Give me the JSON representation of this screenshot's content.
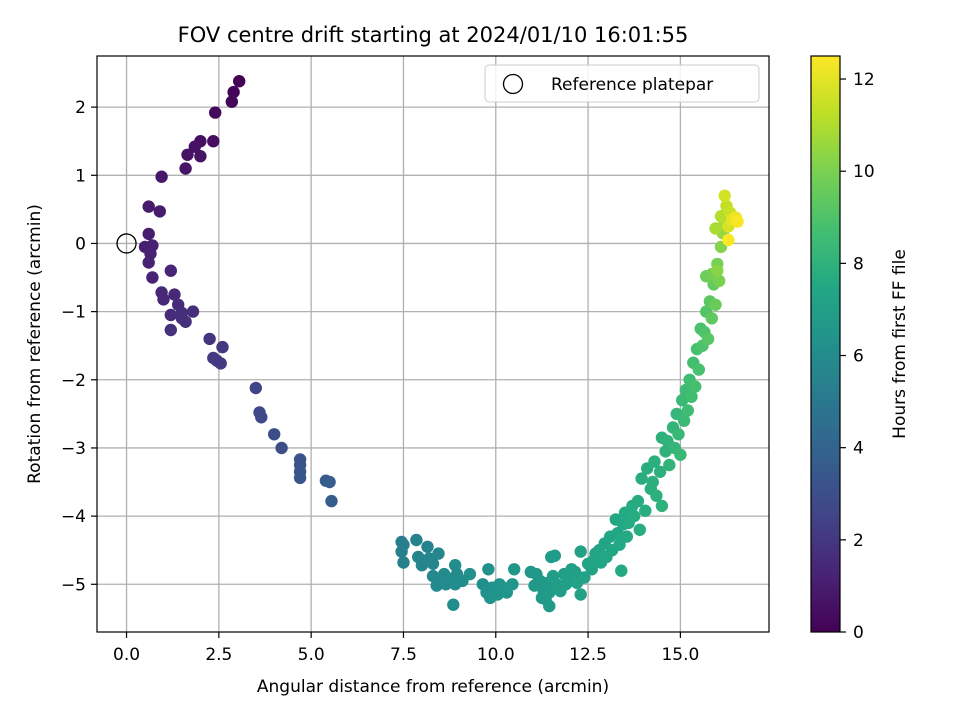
{
  "chart_data": {
    "type": "scatter",
    "title": "FOV centre drift starting at 2024/01/10 16:01:55",
    "xlabel": "Angular distance from reference (arcmin)",
    "ylabel": "Rotation from reference (arcmin)",
    "xlim": [
      -0.8,
      17.4
    ],
    "ylim": [
      -5.7,
      2.75
    ],
    "xticks": [
      0.0,
      2.5,
      5.0,
      7.5,
      10.0,
      12.5,
      15.0
    ],
    "xtick_labels": [
      "0.0",
      "2.5",
      "5.0",
      "7.5",
      "10.0",
      "12.5",
      "15.0"
    ],
    "yticks": [
      2,
      1,
      0,
      -1,
      -2,
      -3,
      -4,
      -5
    ],
    "ytick_labels": [
      "2",
      "1",
      "0",
      "−1",
      "−2",
      "−3",
      "−4",
      "−5"
    ],
    "grid": true,
    "legend": {
      "location": "top-right",
      "entries": [
        "Reference platepar"
      ]
    },
    "reference_point": {
      "x": 0.0,
      "y": 0.0,
      "marker": "open-circle",
      "name": "Reference platepar"
    },
    "colorbar": {
      "label": "Hours from first FF file",
      "colormap": "viridis",
      "range": [
        0,
        12.5
      ],
      "ticks": [
        0,
        2,
        4,
        6,
        8,
        10,
        12
      ],
      "tick_labels": [
        "0",
        "2",
        "4",
        "6",
        "8",
        "10",
        "12"
      ]
    },
    "series": [
      {
        "color_by": "hours",
        "points": [
          [
            3.05,
            2.38,
            0.05
          ],
          [
            2.9,
            2.22,
            0.15
          ],
          [
            2.85,
            2.08,
            0.2
          ],
          [
            2.4,
            1.92,
            0.3
          ],
          [
            2.35,
            1.5,
            0.4
          ],
          [
            2.0,
            1.5,
            0.5
          ],
          [
            1.85,
            1.42,
            0.55
          ],
          [
            1.65,
            1.3,
            0.6
          ],
          [
            2.0,
            1.28,
            0.65
          ],
          [
            1.6,
            1.1,
            0.7
          ],
          [
            0.95,
            0.98,
            0.8
          ],
          [
            0.6,
            0.54,
            0.9
          ],
          [
            0.9,
            0.47,
            0.95
          ],
          [
            0.6,
            0.14,
            1.0
          ],
          [
            0.5,
            -0.05,
            1.05
          ],
          [
            0.7,
            -0.03,
            1.1
          ],
          [
            0.65,
            -0.15,
            1.15
          ],
          [
            0.6,
            -0.28,
            1.2
          ],
          [
            0.7,
            -0.5,
            1.25
          ],
          [
            1.2,
            -0.4,
            1.3
          ],
          [
            0.95,
            -0.72,
            1.35
          ],
          [
            1.0,
            -0.82,
            1.4
          ],
          [
            1.3,
            -0.75,
            1.45
          ],
          [
            1.4,
            -0.9,
            1.5
          ],
          [
            1.2,
            -1.05,
            1.55
          ],
          [
            1.5,
            -1.02,
            1.6
          ],
          [
            1.8,
            -1.0,
            1.65
          ],
          [
            1.6,
            -1.15,
            1.7
          ],
          [
            1.5,
            -1.1,
            1.72
          ],
          [
            1.2,
            -1.27,
            1.75
          ],
          [
            2.25,
            -1.4,
            1.9
          ],
          [
            2.6,
            -1.52,
            2.0
          ],
          [
            2.35,
            -1.68,
            2.05
          ],
          [
            2.45,
            -1.72,
            2.1
          ],
          [
            2.55,
            -1.76,
            2.15
          ],
          [
            3.5,
            -2.12,
            2.5
          ],
          [
            3.6,
            -2.48,
            2.65
          ],
          [
            3.65,
            -2.55,
            2.7
          ],
          [
            4.0,
            -2.8,
            2.9
          ],
          [
            4.2,
            -3.0,
            3.0
          ],
          [
            4.7,
            -3.17,
            3.2
          ],
          [
            4.7,
            -3.25,
            3.25
          ],
          [
            4.7,
            -3.35,
            3.3
          ],
          [
            4.7,
            -3.44,
            3.35
          ],
          [
            5.4,
            -3.48,
            3.6
          ],
          [
            5.5,
            -3.5,
            3.65
          ],
          [
            5.55,
            -3.78,
            3.7
          ],
          [
            7.45,
            -4.38,
            5.3
          ],
          [
            7.5,
            -4.42,
            5.35
          ],
          [
            7.45,
            -4.52,
            5.4
          ],
          [
            7.5,
            -4.68,
            5.45
          ],
          [
            7.85,
            -4.35,
            5.5
          ],
          [
            8.15,
            -4.45,
            5.55
          ],
          [
            7.9,
            -4.6,
            5.6
          ],
          [
            8.0,
            -4.72,
            5.65
          ],
          [
            8.2,
            -4.62,
            5.7
          ],
          [
            8.3,
            -4.7,
            5.72
          ],
          [
            8.45,
            -4.55,
            5.75
          ],
          [
            8.3,
            -4.88,
            5.8
          ],
          [
            8.5,
            -4.95,
            5.85
          ],
          [
            8.4,
            -5.02,
            5.87
          ],
          [
            8.6,
            -4.85,
            5.9
          ],
          [
            8.65,
            -5.0,
            5.92
          ],
          [
            8.75,
            -4.92,
            5.95
          ],
          [
            8.9,
            -4.72,
            6.0
          ],
          [
            8.95,
            -4.85,
            6.02
          ],
          [
            8.9,
            -5.0,
            6.05
          ],
          [
            8.85,
            -5.3,
            6.07
          ],
          [
            9.1,
            -4.95,
            6.1
          ],
          [
            9.3,
            -4.85,
            6.15
          ],
          [
            9.65,
            -5.0,
            6.2
          ],
          [
            9.8,
            -4.78,
            6.25
          ],
          [
            9.75,
            -5.12,
            6.3
          ],
          [
            9.9,
            -5.05,
            6.32
          ],
          [
            9.85,
            -5.2,
            6.35
          ],
          [
            10.1,
            -5.0,
            6.4
          ],
          [
            10.2,
            -5.05,
            6.42
          ],
          [
            10.05,
            -5.15,
            6.45
          ],
          [
            10.3,
            -5.12,
            6.5
          ],
          [
            10.45,
            -5.0,
            6.52
          ],
          [
            10.5,
            -4.78,
            6.55
          ],
          [
            10.95,
            -4.82,
            6.6
          ],
          [
            11.1,
            -4.85,
            6.62
          ],
          [
            11.2,
            -4.95,
            6.65
          ],
          [
            11.05,
            -5.02,
            6.67
          ],
          [
            11.3,
            -5.1,
            6.7
          ],
          [
            11.25,
            -5.2,
            6.72
          ],
          [
            11.4,
            -4.98,
            6.75
          ],
          [
            11.45,
            -5.12,
            6.77
          ],
          [
            11.35,
            -5.22,
            6.8
          ],
          [
            11.45,
            -5.32,
            6.82
          ],
          [
            11.5,
            -4.6,
            6.85
          ],
          [
            11.6,
            -4.58,
            6.87
          ],
          [
            11.55,
            -4.88,
            6.9
          ],
          [
            11.65,
            -5.0,
            6.92
          ],
          [
            11.75,
            -5.1,
            6.95
          ],
          [
            11.85,
            -4.85,
            6.97
          ],
          [
            11.9,
            -5.0,
            7.0
          ],
          [
            12.0,
            -4.95,
            7.02
          ],
          [
            12.05,
            -4.78,
            7.05
          ],
          [
            12.15,
            -4.82,
            7.07
          ],
          [
            12.3,
            -4.52,
            7.1
          ],
          [
            12.3,
            -5.15,
            7.12
          ],
          [
            12.2,
            -4.98,
            7.15
          ],
          [
            12.4,
            -4.9,
            7.17
          ],
          [
            12.5,
            -4.7,
            7.2
          ],
          [
            12.6,
            -4.78,
            7.22
          ],
          [
            12.7,
            -4.55,
            7.25
          ],
          [
            12.8,
            -4.5,
            7.27
          ],
          [
            12.65,
            -4.65,
            7.3
          ],
          [
            12.85,
            -4.68,
            7.32
          ],
          [
            12.95,
            -4.4,
            7.35
          ],
          [
            13.0,
            -4.6,
            7.37
          ],
          [
            13.1,
            -4.3,
            7.4
          ],
          [
            13.15,
            -4.5,
            7.42
          ],
          [
            13.25,
            -4.05,
            7.45
          ],
          [
            13.3,
            -4.25,
            7.47
          ],
          [
            13.35,
            -4.42,
            7.5
          ],
          [
            13.45,
            -4.12,
            7.52
          ],
          [
            13.5,
            -3.95,
            7.55
          ],
          [
            13.4,
            -4.8,
            7.57
          ],
          [
            13.55,
            -4.3,
            7.6
          ],
          [
            13.6,
            -4.1,
            7.62
          ],
          [
            13.7,
            -3.85,
            7.65
          ],
          [
            13.75,
            -4.0,
            7.67
          ],
          [
            13.85,
            -3.78,
            7.7
          ],
          [
            13.9,
            -4.2,
            7.72
          ],
          [
            13.95,
            -3.45,
            7.75
          ],
          [
            14.05,
            -3.92,
            7.77
          ],
          [
            14.1,
            -3.3,
            7.8
          ],
          [
            14.2,
            -3.6,
            7.82
          ],
          [
            14.25,
            -3.5,
            7.85
          ],
          [
            14.3,
            -3.2,
            7.87
          ],
          [
            14.35,
            -3.7,
            7.9
          ],
          [
            14.45,
            -3.35,
            7.92
          ],
          [
            14.5,
            -2.85,
            7.95
          ],
          [
            14.5,
            -3.85,
            7.97
          ],
          [
            14.6,
            -3.05,
            8.0
          ],
          [
            14.65,
            -2.9,
            8.05
          ],
          [
            14.7,
            -3.25,
            8.1
          ],
          [
            14.8,
            -2.7,
            8.15
          ],
          [
            14.85,
            -3.0,
            8.2
          ],
          [
            14.9,
            -2.5,
            8.25
          ],
          [
            14.95,
            -2.8,
            8.3
          ],
          [
            15.0,
            -3.1,
            8.35
          ],
          [
            15.05,
            -2.3,
            8.4
          ],
          [
            15.1,
            -2.6,
            8.45
          ],
          [
            15.15,
            -2.15,
            8.5
          ],
          [
            15.2,
            -2.45,
            8.55
          ],
          [
            15.25,
            -2.0,
            8.6
          ],
          [
            15.3,
            -2.25,
            8.65
          ],
          [
            15.35,
            -1.75,
            8.7
          ],
          [
            15.4,
            -2.1,
            8.75
          ],
          [
            15.45,
            -1.55,
            8.8
          ],
          [
            15.5,
            -1.85,
            8.85
          ],
          [
            15.55,
            -1.25,
            8.9
          ],
          [
            15.6,
            -1.5,
            8.95
          ],
          [
            15.65,
            -1.3,
            9.0
          ],
          [
            15.7,
            -1.0,
            9.1
          ],
          [
            15.75,
            -1.4,
            9.2
          ],
          [
            15.8,
            -0.85,
            9.3
          ],
          [
            15.85,
            -1.1,
            9.4
          ],
          [
            15.9,
            -0.6,
            9.5
          ],
          [
            15.95,
            -0.9,
            9.6
          ],
          [
            15.7,
            -0.48,
            9.7
          ],
          [
            15.85,
            -0.45,
            9.8
          ],
          [
            16.0,
            -0.3,
            9.9
          ],
          [
            16.05,
            -0.55,
            10.0
          ],
          [
            16.1,
            -0.05,
            10.2
          ],
          [
            16.0,
            -0.4,
            10.3
          ],
          [
            16.15,
            0.15,
            10.5
          ],
          [
            16.2,
            0.3,
            10.7
          ],
          [
            15.95,
            0.22,
            10.9
          ],
          [
            16.1,
            0.4,
            11.1
          ],
          [
            16.25,
            0.55,
            11.3
          ],
          [
            16.35,
            0.45,
            11.5
          ],
          [
            16.2,
            0.7,
            11.7
          ],
          [
            16.3,
            0.25,
            11.8
          ],
          [
            16.4,
            0.35,
            12.0
          ],
          [
            16.5,
            0.38,
            12.2
          ],
          [
            16.55,
            0.32,
            12.4
          ],
          [
            16.3,
            0.05,
            12.45
          ]
        ]
      }
    ]
  },
  "colors": {
    "grid": "#b0b0b0",
    "axes": "#000000",
    "legend_edge": "#cccccc"
  }
}
